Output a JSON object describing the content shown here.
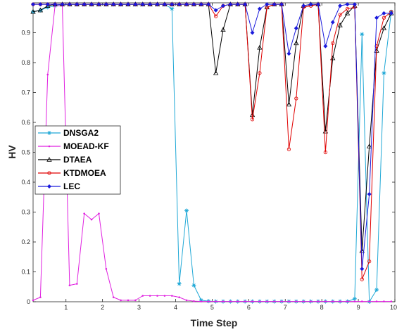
{
  "chart_data": {
    "type": "line",
    "xlabel": "Time Step",
    "ylabel": "HV",
    "xlim": [
      0.1,
      10
    ],
    "ylim": [
      0,
      1
    ],
    "xticks": [
      "1",
      "2",
      "3",
      "4",
      "5",
      "6",
      "7",
      "8",
      "9",
      "10"
    ],
    "yticks": [
      "0",
      "0.1",
      "0.2",
      "0.3",
      "0.4",
      "0.5",
      "0.6",
      "0.7",
      "0.8",
      "0.9"
    ],
    "grid": false,
    "legend_position": "center-left",
    "x": [
      0.1,
      0.3,
      0.5,
      0.7,
      0.9,
      1.1,
      1.3,
      1.5,
      1.7,
      1.9,
      2.1,
      2.3,
      2.5,
      2.7,
      2.9,
      3.1,
      3.3,
      3.5,
      3.7,
      3.9,
      4.1,
      4.3,
      4.5,
      4.7,
      4.9,
      5.1,
      5.3,
      5.5,
      5.7,
      5.9,
      6.1,
      6.3,
      6.5,
      6.7,
      6.9,
      7.1,
      7.3,
      7.5,
      7.7,
      7.9,
      8.1,
      8.3,
      8.5,
      8.7,
      8.9,
      9.1,
      9.3,
      9.5,
      9.7,
      9.9
    ],
    "series": [
      {
        "name": "DNSGA2",
        "color": "#1fa8d6",
        "marker": "star",
        "values": [
          0.97,
          0.975,
          0.985,
          0.99,
          0.995,
          0.995,
          0.995,
          0.995,
          0.995,
          0.995,
          0.995,
          0.995,
          0.995,
          0.995,
          0.995,
          0.995,
          0.995,
          0.995,
          0.995,
          0.98,
          0.06,
          0.305,
          0.055,
          0.005,
          0.002,
          0.001,
          0.001,
          0.001,
          0.001,
          0.001,
          0.001,
          0.001,
          0.001,
          0.001,
          0.001,
          0.001,
          0.001,
          0.001,
          0.001,
          0.001,
          0.001,
          0.001,
          0.001,
          0.001,
          0.01,
          0.895,
          0.0,
          0.04,
          0.765,
          0.97
        ]
      },
      {
        "name": "MOEAD-KF",
        "color": "#e020e0",
        "marker": "dot",
        "values": [
          0.005,
          0.015,
          0.76,
          0.99,
          0.99,
          0.055,
          0.06,
          0.295,
          0.275,
          0.295,
          0.11,
          0.015,
          0.005,
          0.005,
          0.005,
          0.02,
          0.02,
          0.02,
          0.02,
          0.02,
          0.015,
          0.005,
          0.002,
          0.001,
          0.001,
          0.001,
          0.001,
          0.001,
          0.001,
          0.001,
          0.001,
          0.001,
          0.001,
          0.001,
          0.001,
          0.001,
          0.001,
          0.001,
          0.001,
          0.001,
          0.001,
          0.001,
          0.001,
          0.001,
          0.001,
          0.001,
          0.001,
          0.001,
          0.001,
          0.001
        ]
      },
      {
        "name": "DTAEA",
        "color": "#000000",
        "marker": "triangle",
        "values": [
          0.97,
          0.975,
          0.99,
          0.995,
          0.995,
          0.995,
          0.995,
          0.995,
          0.995,
          0.995,
          0.995,
          0.995,
          0.995,
          0.995,
          0.995,
          0.995,
          0.995,
          0.995,
          0.995,
          0.995,
          0.995,
          0.995,
          0.995,
          0.995,
          0.995,
          0.765,
          0.91,
          0.995,
          0.995,
          0.995,
          0.625,
          0.85,
          0.985,
          0.995,
          0.995,
          0.66,
          0.865,
          0.99,
          0.995,
          0.995,
          0.57,
          0.815,
          0.925,
          0.965,
          0.99,
          0.17,
          0.52,
          0.84,
          0.915,
          0.965
        ]
      },
      {
        "name": "KTDMOEA",
        "color": "#e00000",
        "marker": "circle",
        "values": [
          0.995,
          0.995,
          0.995,
          0.995,
          0.995,
          0.995,
          0.995,
          0.995,
          0.995,
          0.995,
          0.995,
          0.995,
          0.995,
          0.995,
          0.995,
          0.995,
          0.995,
          0.995,
          0.995,
          0.995,
          0.995,
          0.995,
          0.995,
          0.995,
          0.995,
          0.955,
          0.99,
          0.995,
          0.995,
          0.995,
          0.61,
          0.765,
          0.985,
          0.995,
          0.995,
          0.51,
          0.68,
          0.985,
          0.99,
          0.995,
          0.5,
          0.865,
          0.96,
          0.98,
          0.985,
          0.075,
          0.135,
          0.855,
          0.95,
          0.97
        ]
      },
      {
        "name": "LEC",
        "color": "#1a1adc",
        "marker": "diamond",
        "values": [
          0.995,
          0.995,
          0.995,
          0.995,
          0.995,
          0.995,
          0.995,
          0.995,
          0.995,
          0.995,
          0.995,
          0.995,
          0.995,
          0.995,
          0.995,
          0.995,
          0.995,
          0.995,
          0.995,
          0.995,
          0.995,
          0.995,
          0.995,
          0.995,
          0.995,
          0.975,
          0.99,
          0.995,
          0.995,
          0.995,
          0.9,
          0.98,
          0.995,
          0.995,
          0.995,
          0.83,
          0.915,
          0.99,
          0.995,
          0.995,
          0.855,
          0.935,
          0.99,
          0.995,
          0.995,
          0.11,
          0.36,
          0.95,
          0.965,
          0.965
        ]
      }
    ]
  }
}
